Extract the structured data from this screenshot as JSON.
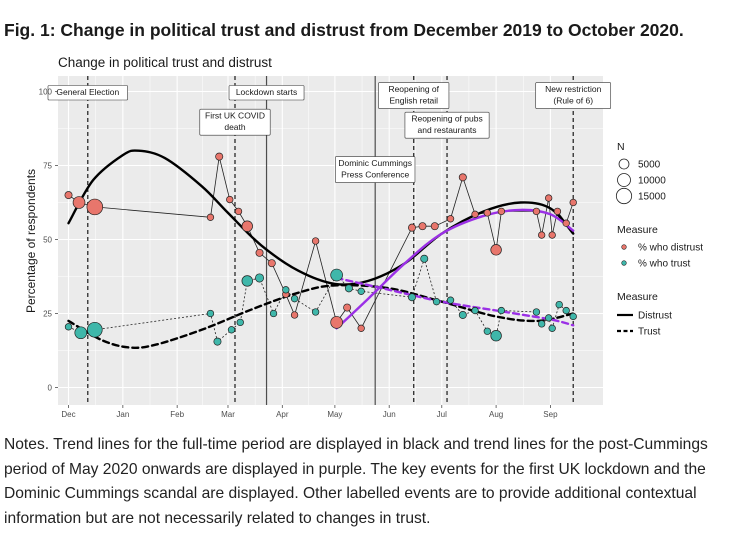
{
  "figure": {
    "title": "Fig. 1: Change in political trust and distrust from December 2019 to October 2020.",
    "notes": "Notes. Trend lines for the full-time period are displayed in black and trend lines for the post-Cummings period of May 2020 onwards are displayed in purple. The key events for the first UK lockdown and the Dominic Cummings scandal are displayed. Other labelled events are to provide additional contextual information but are not necessarily related to changes in trust."
  },
  "chart_data": {
    "type": "scatter",
    "title": "Change in political trust and distrust",
    "ylabel": "Percentage of respondents",
    "xlabel": "",
    "ylim": [
      0,
      100
    ],
    "xlim": [
      "2019-11-25",
      "2020-10-01"
    ],
    "yticks": [
      "0",
      "25",
      "50",
      "75",
      "100"
    ],
    "xticks": [
      {
        "date": "2019-12-01",
        "label": "Dec"
      },
      {
        "date": "2020-01-01",
        "label": "Jan"
      },
      {
        "date": "2020-02-01",
        "label": "Feb"
      },
      {
        "date": "2020-03-01",
        "label": "Mar"
      },
      {
        "date": "2020-04-01",
        "label": "Apr"
      },
      {
        "date": "2020-05-01",
        "label": "May"
      },
      {
        "date": "2020-06-01",
        "label": "Jun"
      },
      {
        "date": "2020-07-01",
        "label": "Jul"
      },
      {
        "date": "2020-08-01",
        "label": "Aug"
      },
      {
        "date": "2020-09-01",
        "label": "Sep"
      }
    ],
    "grid": true,
    "legend_position": "right",
    "colors": {
      "distrust": "#e8766c",
      "trust": "#3fb7aa",
      "panel": "#ebebeb",
      "grid": "#ffffff",
      "black": "#000000",
      "purple": "#9b30e6"
    },
    "events": [
      {
        "date": "2019-12-12",
        "label": [
          "General Election"
        ],
        "style": "dashed",
        "label_y": 100
      },
      {
        "date": "2020-03-05",
        "label": [
          "First UK COVID",
          "death"
        ],
        "style": "dashed",
        "label_y": 92
      },
      {
        "date": "2020-03-23",
        "label": [
          "Lockdown starts"
        ],
        "style": "solid",
        "label_y": 100
      },
      {
        "date": "2020-05-24",
        "label": [
          "Dominic Cummings",
          "Press Conference"
        ],
        "style": "solid",
        "label_y": 76
      },
      {
        "date": "2020-06-15",
        "label": [
          "Reopening of",
          "English retail"
        ],
        "style": "dashed",
        "label_y": 101
      },
      {
        "date": "2020-07-04",
        "label": [
          "Reopening of pubs",
          "and restaurants"
        ],
        "style": "dashed",
        "label_y": 91
      },
      {
        "date": "2020-09-14",
        "label": [
          "New restriction",
          "(Rule of 6)"
        ],
        "style": "dashed",
        "label_y": 101
      }
    ],
    "series": [
      {
        "name": "% who distrust",
        "points": [
          {
            "x": "2019-12-01",
            "y": 65,
            "n": 2000
          },
          {
            "x": "2019-12-07",
            "y": 62.5,
            "n": 8000
          },
          {
            "x": "2019-12-16",
            "y": 61,
            "n": 16000
          },
          {
            "x": "2020-02-20",
            "y": 57.5,
            "n": 1500
          },
          {
            "x": "2020-02-25",
            "y": 78,
            "n": 2000
          },
          {
            "x": "2020-03-02",
            "y": 63.5,
            "n": 1500
          },
          {
            "x": "2020-03-07",
            "y": 59.5,
            "n": 1500
          },
          {
            "x": "2020-03-12",
            "y": 54.5,
            "n": 6000
          },
          {
            "x": "2020-03-19",
            "y": 45.5,
            "n": 2000
          },
          {
            "x": "2020-03-26",
            "y": 42,
            "n": 2000
          },
          {
            "x": "2020-04-03",
            "y": 31.5,
            "n": 1500
          },
          {
            "x": "2020-04-08",
            "y": 24.5,
            "n": 1500
          },
          {
            "x": "2020-04-20",
            "y": 49.5,
            "n": 1500
          },
          {
            "x": "2020-05-02",
            "y": 22,
            "n": 8000
          },
          {
            "x": "2020-05-08",
            "y": 27,
            "n": 2000
          },
          {
            "x": "2020-05-16",
            "y": 20,
            "n": 1500
          },
          {
            "x": "2020-06-14",
            "y": 54,
            "n": 2000
          },
          {
            "x": "2020-06-20",
            "y": 54.5,
            "n": 2000
          },
          {
            "x": "2020-06-27",
            "y": 54.5,
            "n": 2000
          },
          {
            "x": "2020-07-06",
            "y": 57,
            "n": 1500
          },
          {
            "x": "2020-07-13",
            "y": 71,
            "n": 2000
          },
          {
            "x": "2020-07-20",
            "y": 58.5,
            "n": 1500
          },
          {
            "x": "2020-07-27",
            "y": 59,
            "n": 1500
          },
          {
            "x": "2020-08-01",
            "y": 46.5,
            "n": 6000
          },
          {
            "x": "2020-08-04",
            "y": 59.5,
            "n": 1500
          },
          {
            "x": "2020-08-24",
            "y": 59.5,
            "n": 1500
          },
          {
            "x": "2020-08-27",
            "y": 51.5,
            "n": 1500
          },
          {
            "x": "2020-08-31",
            "y": 64,
            "n": 1500
          },
          {
            "x": "2020-09-02",
            "y": 51.5,
            "n": 1500
          },
          {
            "x": "2020-09-05",
            "y": 59.5,
            "n": 1500
          },
          {
            "x": "2020-09-10",
            "y": 55.5,
            "n": 1500
          },
          {
            "x": "2020-09-14",
            "y": 62.5,
            "n": 1500
          }
        ]
      },
      {
        "name": "% who trust",
        "points": [
          {
            "x": "2019-12-01",
            "y": 20.5,
            "n": 1500
          },
          {
            "x": "2019-12-08",
            "y": 18.5,
            "n": 8000
          },
          {
            "x": "2019-12-16",
            "y": 19.5,
            "n": 14000
          },
          {
            "x": "2020-02-20",
            "y": 25,
            "n": 1500
          },
          {
            "x": "2020-02-24",
            "y": 15.5,
            "n": 2000
          },
          {
            "x": "2020-03-03",
            "y": 19.5,
            "n": 1500
          },
          {
            "x": "2020-03-08",
            "y": 22,
            "n": 1500
          },
          {
            "x": "2020-03-12",
            "y": 36,
            "n": 6000
          },
          {
            "x": "2020-03-19",
            "y": 37,
            "n": 3000
          },
          {
            "x": "2020-03-27",
            "y": 25,
            "n": 1500
          },
          {
            "x": "2020-04-03",
            "y": 33,
            "n": 1500
          },
          {
            "x": "2020-04-08",
            "y": 30,
            "n": 1500
          },
          {
            "x": "2020-04-20",
            "y": 25.5,
            "n": 1500
          },
          {
            "x": "2020-05-02",
            "y": 38,
            "n": 8000
          },
          {
            "x": "2020-05-09",
            "y": 33.5,
            "n": 2000
          },
          {
            "x": "2020-05-16",
            "y": 32.5,
            "n": 1500
          },
          {
            "x": "2020-06-14",
            "y": 30.5,
            "n": 2000
          },
          {
            "x": "2020-06-21",
            "y": 43.5,
            "n": 2000
          },
          {
            "x": "2020-06-28",
            "y": 29,
            "n": 1500
          },
          {
            "x": "2020-07-06",
            "y": 29.5,
            "n": 1500
          },
          {
            "x": "2020-07-13",
            "y": 24.5,
            "n": 2000
          },
          {
            "x": "2020-07-20",
            "y": 26,
            "n": 1500
          },
          {
            "x": "2020-07-27",
            "y": 19,
            "n": 1500
          },
          {
            "x": "2020-08-01",
            "y": 17.5,
            "n": 6000
          },
          {
            "x": "2020-08-04",
            "y": 26,
            "n": 1500
          },
          {
            "x": "2020-08-24",
            "y": 25.5,
            "n": 1500
          },
          {
            "x": "2020-08-27",
            "y": 21.5,
            "n": 1500
          },
          {
            "x": "2020-08-31",
            "y": 23.5,
            "n": 1500
          },
          {
            "x": "2020-09-02",
            "y": 20,
            "n": 1500
          },
          {
            "x": "2020-09-06",
            "y": 28,
            "n": 1500
          },
          {
            "x": "2020-09-10",
            "y": 26,
            "n": 1500
          },
          {
            "x": "2020-09-14",
            "y": 24,
            "n": 1500
          }
        ]
      }
    ],
    "trend_lines": [
      {
        "name": "Distrust",
        "color": "#000000",
        "dash": false,
        "points": [
          {
            "x": "2019-12-01",
            "y": 55.5
          },
          {
            "x": "2019-12-15",
            "y": 70
          },
          {
            "x": "2020-01-01",
            "y": 78.5
          },
          {
            "x": "2020-01-10",
            "y": 80
          },
          {
            "x": "2020-01-25",
            "y": 77.5
          },
          {
            "x": "2020-02-15",
            "y": 68
          },
          {
            "x": "2020-03-01",
            "y": 59
          },
          {
            "x": "2020-03-20",
            "y": 48
          },
          {
            "x": "2020-04-10",
            "y": 39.5
          },
          {
            "x": "2020-05-01",
            "y": 35
          },
          {
            "x": "2020-05-20",
            "y": 36
          },
          {
            "x": "2020-06-10",
            "y": 42
          },
          {
            "x": "2020-07-01",
            "y": 52
          },
          {
            "x": "2020-07-25",
            "y": 59.5
          },
          {
            "x": "2020-08-15",
            "y": 62.5
          },
          {
            "x": "2020-09-01",
            "y": 60.5
          },
          {
            "x": "2020-09-14",
            "y": 52
          }
        ]
      },
      {
        "name": "Trust",
        "color": "#000000",
        "dash": true,
        "points": [
          {
            "x": "2019-12-01",
            "y": 22.5
          },
          {
            "x": "2019-12-20",
            "y": 16
          },
          {
            "x": "2020-01-05",
            "y": 13.5
          },
          {
            "x": "2020-01-20",
            "y": 14.5
          },
          {
            "x": "2020-02-15",
            "y": 19.5
          },
          {
            "x": "2020-03-15",
            "y": 26.5
          },
          {
            "x": "2020-04-10",
            "y": 32
          },
          {
            "x": "2020-05-01",
            "y": 34.5
          },
          {
            "x": "2020-06-01",
            "y": 33.5
          },
          {
            "x": "2020-07-01",
            "y": 29
          },
          {
            "x": "2020-08-01",
            "y": 24
          },
          {
            "x": "2020-08-25",
            "y": 22.5
          },
          {
            "x": "2020-09-14",
            "y": 25
          }
        ]
      },
      {
        "name": "Distrust (post-Cummings)",
        "color": "#9b30e6",
        "dash": false,
        "points": [
          {
            "x": "2020-05-02",
            "y": 20
          },
          {
            "x": "2020-05-20",
            "y": 30
          },
          {
            "x": "2020-06-10",
            "y": 42
          },
          {
            "x": "2020-07-01",
            "y": 52
          },
          {
            "x": "2020-07-25",
            "y": 58
          },
          {
            "x": "2020-08-15",
            "y": 60
          },
          {
            "x": "2020-09-01",
            "y": 58.5
          },
          {
            "x": "2020-09-14",
            "y": 53
          }
        ]
      },
      {
        "name": "Trust (post-Cummings)",
        "color": "#9b30e6",
        "dash": true,
        "points": [
          {
            "x": "2020-05-02",
            "y": 37
          },
          {
            "x": "2020-06-01",
            "y": 33
          },
          {
            "x": "2020-07-01",
            "y": 29
          },
          {
            "x": "2020-08-01",
            "y": 26
          },
          {
            "x": "2020-09-01",
            "y": 23
          },
          {
            "x": "2020-09-14",
            "y": 21
          }
        ]
      }
    ],
    "legend": {
      "size": {
        "title": "N",
        "entries": [
          {
            "label": "5000",
            "n": 5000
          },
          {
            "label": "10000",
            "n": 10000
          },
          {
            "label": "15000",
            "n": 15000
          }
        ]
      },
      "measure_points": {
        "title": "Measure",
        "entries": [
          {
            "label": "% who distrust",
            "series": "% who distrust"
          },
          {
            "label": "% who trust",
            "series": "% who trust"
          }
        ]
      },
      "measure_lines": {
        "title": "Measure",
        "entries": [
          {
            "label": "Distrust",
            "dash": false
          },
          {
            "label": "Trust",
            "dash": true
          }
        ]
      }
    }
  }
}
